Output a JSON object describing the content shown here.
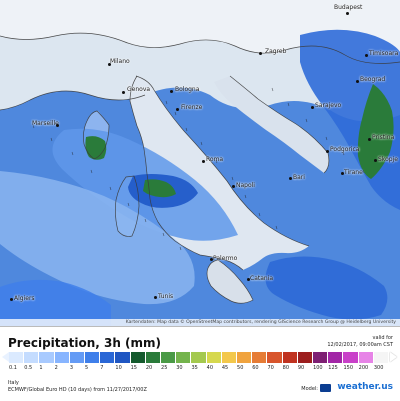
{
  "map": {
    "cities": [
      {
        "name": "Budapest"
      },
      {
        "name": "Zagreb"
      },
      {
        "name": "Milano"
      },
      {
        "name": "Genova"
      },
      {
        "name": "Bologna"
      },
      {
        "name": "Firenze"
      },
      {
        "name": "Marseille"
      },
      {
        "name": "Roma"
      },
      {
        "name": "Napoli"
      },
      {
        "name": "Bari"
      },
      {
        "name": "Palermo"
      },
      {
        "name": "Catania"
      },
      {
        "name": "Tirane"
      },
      {
        "name": "Sarajevo"
      },
      {
        "name": "Beograd"
      },
      {
        "name": "Podgorica"
      },
      {
        "name": "Skopje"
      },
      {
        "name": "Timisoara"
      },
      {
        "name": "Pristina"
      },
      {
        "name": "Algiers"
      },
      {
        "name": "Tunis"
      }
    ],
    "attribution": "Kartendaten: Map data © OpenStreetMap contributors, rendering GIScience Research Group @ Heidelberg University"
  },
  "panel": {
    "title": "Precipitation, 3h (mm)",
    "valid_label": "valid for",
    "valid_time": "12/02/2017, 09:00am CST",
    "region": "Italy",
    "model_desc": "ECMWF/Global Euro HD (10 days) from 11/27/2017/00Z",
    "model_label": "Model:",
    "brand": "weather.us",
    "scale": [
      "0.1",
      "0.5",
      "1",
      "2",
      "3",
      "5",
      "7",
      "10",
      "15",
      "20",
      "25",
      "30",
      "35",
      "40",
      "45",
      "50",
      "60",
      "70",
      "80",
      "90",
      "100",
      "125",
      "150",
      "200",
      "300"
    ],
    "colors": [
      "#dbeaff",
      "#c4dcff",
      "#a8caff",
      "#88b5ff",
      "#649bf5",
      "#3f7fea",
      "#2a67d6",
      "#1f56c2",
      "#145a2d",
      "#2a7b3a",
      "#4a9a46",
      "#74b44c",
      "#a4c94f",
      "#d6d84e",
      "#f3c84b",
      "#f0a33e",
      "#e67c35",
      "#d8552c",
      "#c0321f",
      "#9c1e1e",
      "#7e1f73",
      "#a226a6",
      "#c940c9",
      "#e784e7",
      "#f5f5f5"
    ]
  }
}
